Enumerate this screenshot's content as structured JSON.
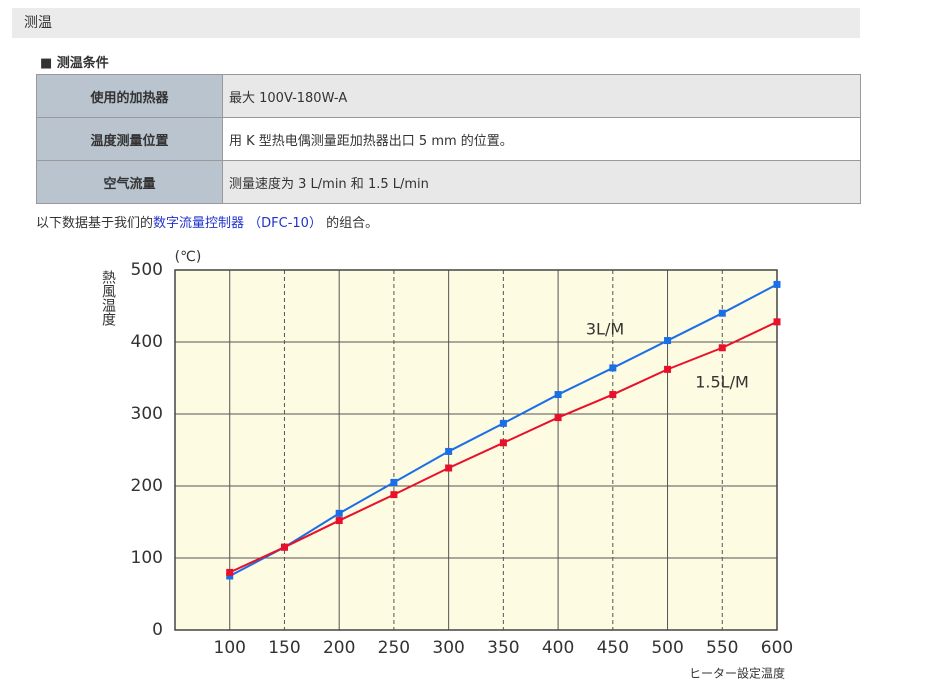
{
  "header": {
    "title": "测温"
  },
  "section": {
    "title": "■ 测温条件"
  },
  "table": {
    "rows": [
      [
        "使用的加热器",
        "最大 100V-180W-A"
      ],
      [
        "温度测量位置",
        "用 K 型热电偶测量距加热器出口 5 mm 的位置。"
      ],
      [
        "空气流量",
        "测量速度为 3 L/min 和 1.5 L/min"
      ]
    ]
  },
  "note": {
    "before": "以下数据基于我们的",
    "link": "数字流量控制器 （DFC-10）",
    "after": " 的组合。"
  },
  "chart_data": {
    "type": "line",
    "y_label": "熱風温度",
    "y_unit": "(℃)",
    "x_label": "ヒーター設定温度",
    "x_unit": "(℃)",
    "x": [
      100,
      150,
      200,
      250,
      300,
      350,
      400,
      450,
      500,
      550,
      600
    ],
    "series": [
      {
        "name": "3L/M",
        "color": "#1a6ee8",
        "values": [
          75,
          115,
          162,
          205,
          248,
          287,
          327,
          364,
          402,
          440,
          480
        ]
      },
      {
        "name": "1.5L/M",
        "color": "#e8102a",
        "values": [
          80,
          115,
          152,
          188,
          225,
          260,
          295,
          327,
          362,
          392,
          428
        ]
      }
    ],
    "xlim": [
      50,
      600
    ],
    "ylim": [
      0,
      500
    ],
    "xticks": [
      100,
      150,
      200,
      250,
      300,
      350,
      400,
      450,
      500,
      550,
      600
    ],
    "yticks": [
      0,
      100,
      200,
      300,
      400,
      500
    ],
    "grid": true
  }
}
